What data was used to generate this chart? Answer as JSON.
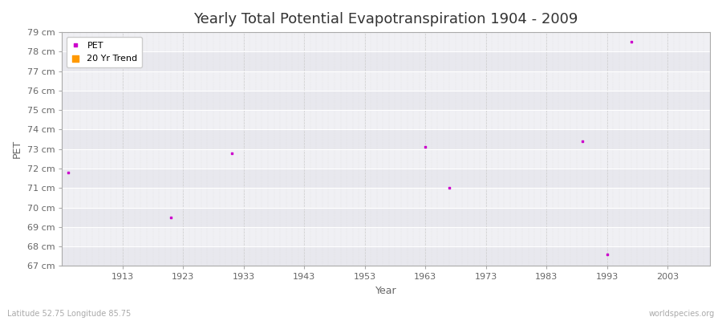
{
  "title": "Yearly Total Potential Evapotranspiration 1904 - 2009",
  "xlabel": "Year",
  "ylabel": "PET",
  "subtitle_left": "Latitude 52.75 Longitude 85.75",
  "subtitle_right": "worldspecies.org",
  "pet_points": [
    [
      1904,
      71.8
    ],
    [
      1921,
      69.5
    ],
    [
      1931,
      72.8
    ],
    [
      1963,
      73.1
    ],
    [
      1967,
      71.0
    ],
    [
      1989,
      73.4
    ],
    [
      1993,
      67.6
    ],
    [
      1997,
      78.5
    ]
  ],
  "pet_color": "#cc00cc",
  "trend_color": "#ff9900",
  "ylim": [
    67,
    79
  ],
  "xlim": [
    1903,
    2010
  ],
  "ytick_step": 1,
  "xticks": [
    1913,
    1923,
    1933,
    1943,
    1953,
    1963,
    1973,
    1983,
    1993,
    2003
  ],
  "bg_color": "#ffffff",
  "plot_bg_color": "#f5f5f8",
  "band_color_light": "#f0f0f4",
  "band_color_dark": "#e8e8ee",
  "grid_major_color": "#ffffff",
  "grid_minor_color": "#cccccc",
  "title_fontsize": 13,
  "axis_fontsize": 9,
  "tick_fontsize": 8,
  "legend_fontsize": 8,
  "marker_size": 3
}
